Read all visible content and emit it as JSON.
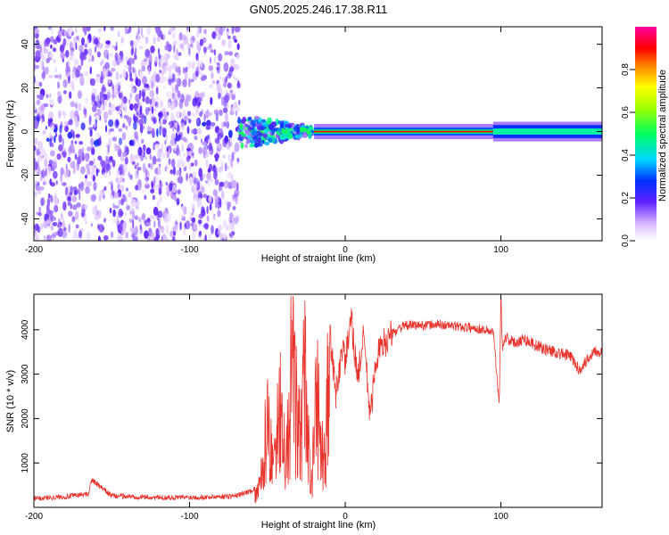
{
  "title": "GN05.2025.246.17.38.R11",
  "chart_data": [
    {
      "type": "heatmap",
      "name": "spectrogram",
      "xlabel": "Height of straight line (km)",
      "ylabel": "Frequency (Hz)",
      "xlim": [
        -200,
        165
      ],
      "ylim": [
        -50,
        48
      ],
      "xticks": [
        -200,
        -100,
        0,
        100
      ],
      "yticks": [
        -40,
        -20,
        0,
        20,
        40
      ],
      "colorbar": {
        "label": "Normalized spectral amplitude",
        "range": [
          0,
          1
        ],
        "ticks": [
          0.0,
          0.2,
          0.4,
          0.6,
          0.8
        ]
      },
      "regions": [
        {
          "x_range": [
            -200,
            -68
          ],
          "description_value": "broadband noise",
          "amplitude": 0.1
        },
        {
          "x_range": [
            -68,
            -20
          ],
          "freq_center": 0,
          "freq_spread": 8,
          "amplitude": 0.4
        },
        {
          "x_range": [
            -20,
            95
          ],
          "freq_center": 0,
          "freq_spread": 1,
          "amplitude": 0.9
        },
        {
          "x_range": [
            95,
            165
          ],
          "freq_center": 0,
          "freq_spread": 3,
          "amplitude": 0.45
        }
      ]
    },
    {
      "type": "line",
      "name": "snr",
      "xlabel": "Height of straight line (km)",
      "ylabel": "SNR (10 * v/v)",
      "xlim": [
        -200,
        165
      ],
      "ylim": [
        0,
        4800
      ],
      "xticks": [
        -200,
        -100,
        0,
        100
      ],
      "yticks": [
        1000,
        2000,
        3000,
        4000
      ],
      "color": "#e8322c",
      "series": [
        {
          "name": "SNR",
          "x": [
            -200,
            -180,
            -165,
            -163,
            -150,
            -120,
            -90,
            -70,
            -60,
            -55,
            -50,
            -46,
            -42,
            -38,
            -34,
            -30,
            -26,
            -22,
            -18,
            -14,
            -10,
            -6,
            -2,
            0,
            4,
            8,
            12,
            16,
            20,
            25,
            30,
            35,
            40,
            50,
            60,
            70,
            80,
            90,
            95,
            99,
            100,
            101,
            103,
            108,
            115,
            125,
            135,
            145,
            150,
            155,
            160,
            165
          ],
          "y": [
            200,
            240,
            300,
            620,
            260,
            220,
            230,
            260,
            380,
            500,
            2300,
            1000,
            3400,
            1300,
            4000,
            1900,
            3600,
            400,
            3100,
            1000,
            3900,
            2500,
            3600,
            3300,
            4200,
            2900,
            3900,
            2000,
            3400,
            3700,
            3900,
            4050,
            4100,
            4100,
            4120,
            4080,
            4050,
            4000,
            3950,
            2300,
            4850,
            3600,
            3850,
            3700,
            3800,
            3600,
            3500,
            3400,
            3100,
            3300,
            3550,
            3500
          ]
        }
      ]
    }
  ]
}
